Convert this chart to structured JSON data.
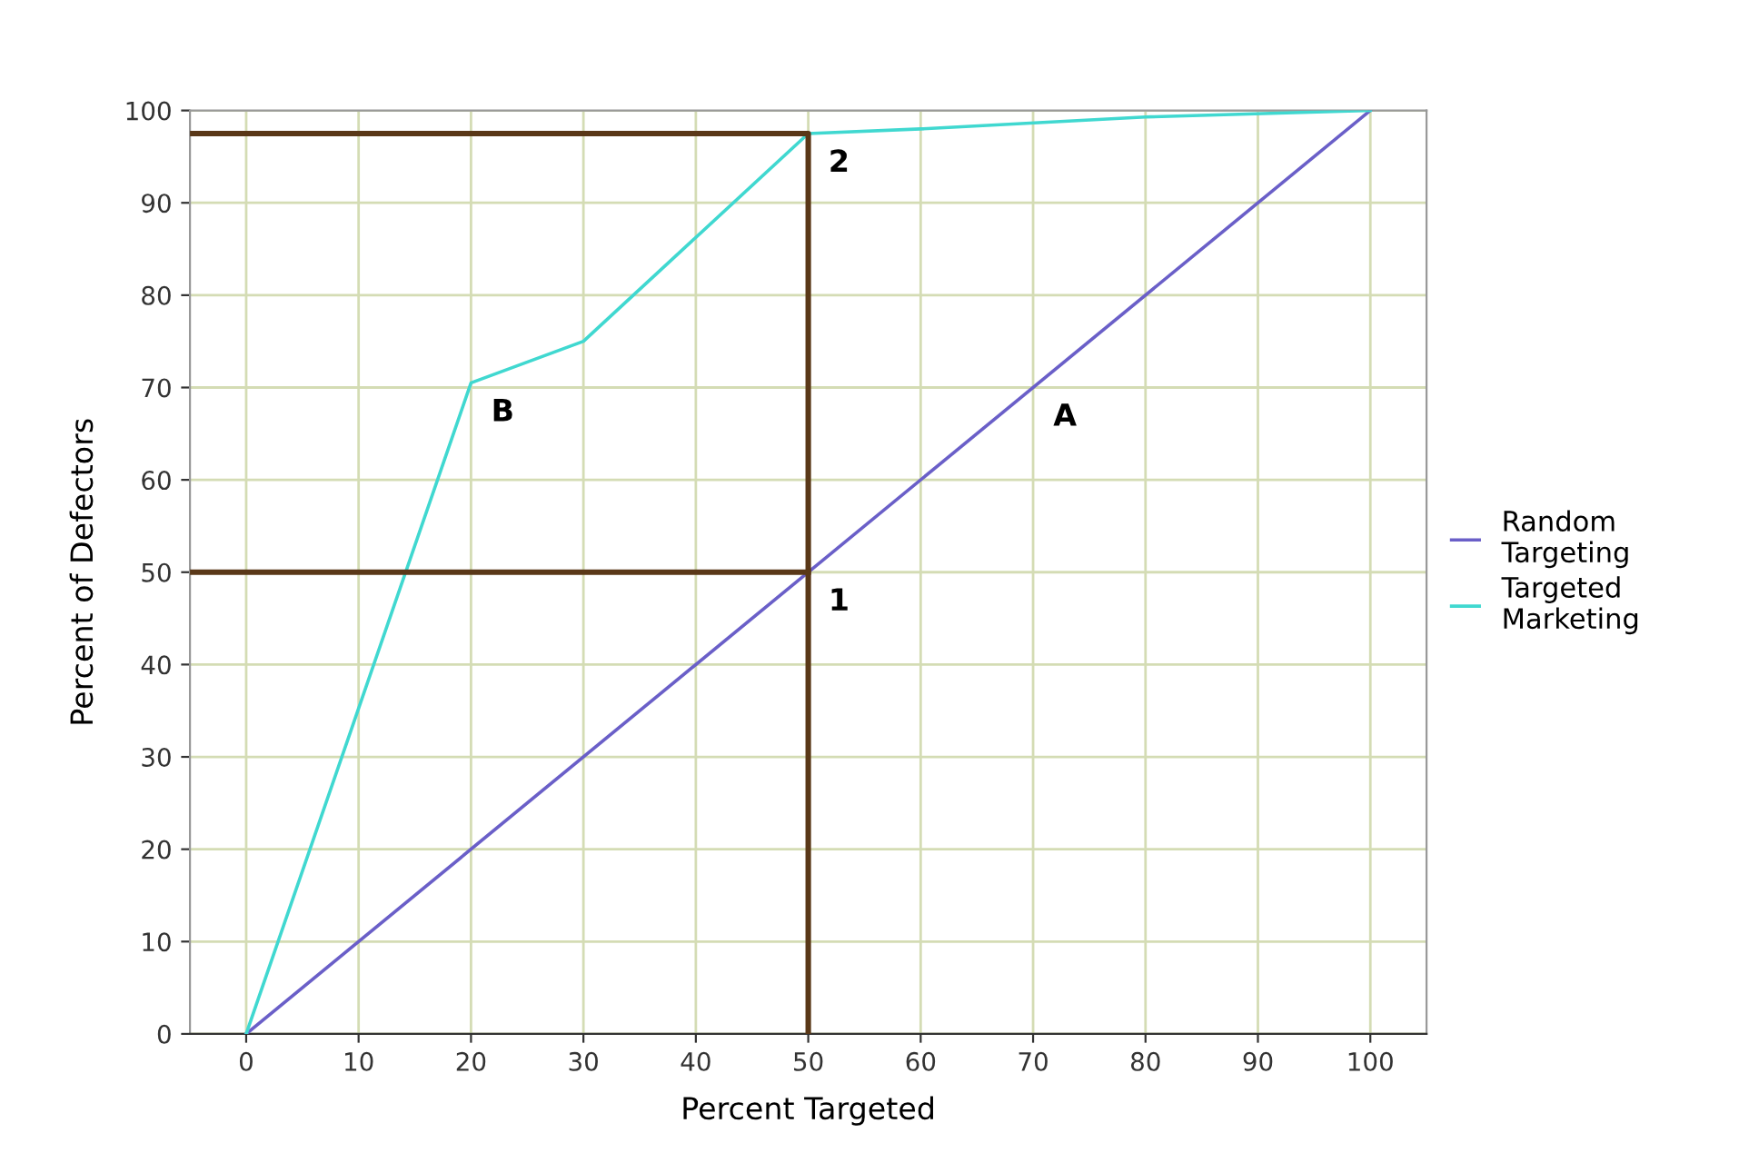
{
  "chart_data": {
    "type": "line",
    "xlabel": "Percent Targeted",
    "ylabel": "Percent of Defectors",
    "xlim": [
      -5,
      105
    ],
    "ylim": [
      0,
      100
    ],
    "xticks": [
      0,
      10,
      20,
      30,
      40,
      50,
      60,
      70,
      80,
      90,
      100
    ],
    "yticks": [
      0,
      10,
      20,
      30,
      40,
      50,
      60,
      70,
      80,
      90,
      100
    ],
    "grid": true,
    "legend": "right",
    "marker": "none",
    "line_style": "solid",
    "series": [
      {
        "name": "Random\nTargeting",
        "color": "#6a5fc8",
        "x": [
          0,
          100
        ],
        "values": [
          0,
          100
        ]
      },
      {
        "name": "Targeted\nMarketing",
        "color": "#40d8d0",
        "x": [
          0,
          20,
          30,
          50,
          60,
          80,
          100
        ],
        "values": [
          0,
          70.5,
          75,
          97.5,
          98,
          99.3,
          100
        ]
      },
      {
        "color": "#5a3818",
        "x": [
          -5,
          50,
          50
        ],
        "values": [
          97.5,
          97.5,
          0
        ]
      },
      {
        "color": "#5a3818",
        "x": [
          -5,
          50
        ],
        "values": [
          50,
          50
        ]
      }
    ],
    "annotations": [
      {
        "text": "A",
        "x": 70,
        "y": 70
      },
      {
        "text": "B",
        "x": 20,
        "y": 70.5
      },
      {
        "text": "1",
        "x": 50,
        "y": 50
      },
      {
        "text": "2",
        "x": 50,
        "y": 97.5
      }
    ]
  }
}
